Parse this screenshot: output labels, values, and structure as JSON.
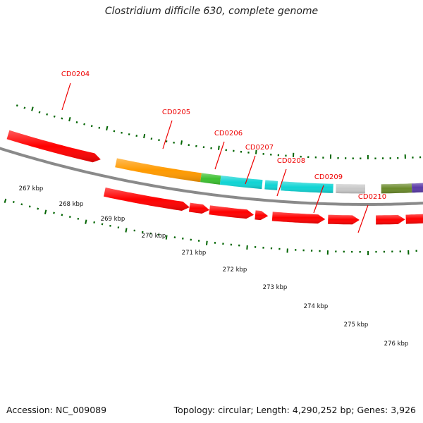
{
  "title": "Clostridium difficile 630, complete genome",
  "footer": {
    "accession": "Accession: NC_009089",
    "summary": "Topology: circular; Length: 4,290,252 bp; Genes: 3,926"
  },
  "colors": {
    "backbone": "#8a8a8a",
    "gene_red": "#ff0000",
    "gene_orange": "#ff9a00",
    "gene_green": "#3cc030",
    "gene_cyan": "#10d4d4",
    "gene_grey": "#c8c8c8",
    "gene_olive": "#6a8a2a",
    "gene_purple": "#5a3aa8",
    "label_red": "#ee0000",
    "tick_green": "#006400"
  },
  "scale_labels": [
    "267 kbp",
    "268 kbp",
    "269 kbp",
    "270 kbp",
    "271 kbp",
    "272 kbp",
    "273 kbp",
    "274 kbp",
    "275 kbp",
    "276 kbp"
  ],
  "gene_labels": [
    "CD0204",
    "CD0205",
    "CD0206",
    "CD0207",
    "CD0208",
    "CD0209",
    "CD0210"
  ]
}
